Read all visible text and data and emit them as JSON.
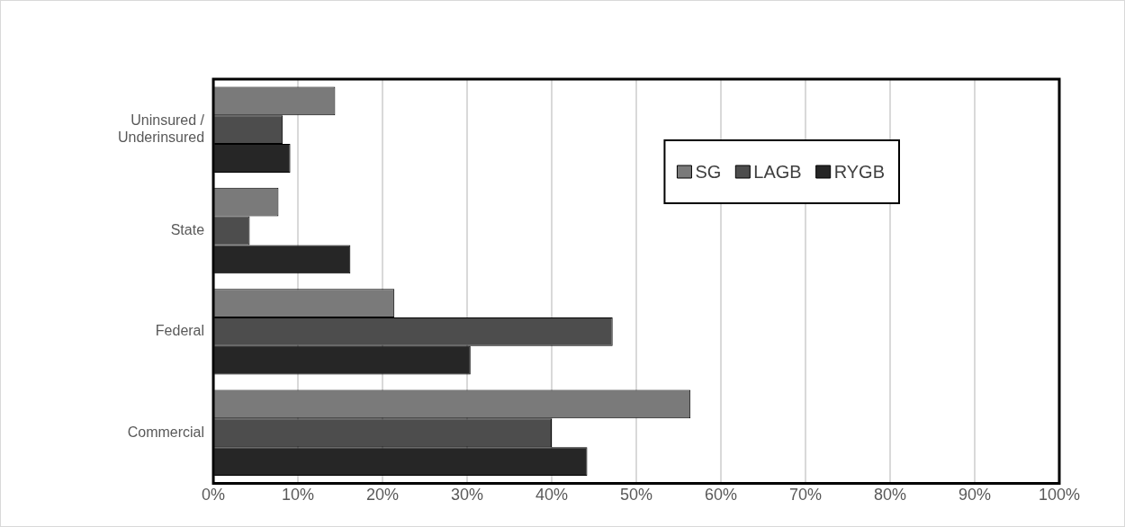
{
  "chart_data": {
    "type": "bar",
    "orientation": "horizontal",
    "categories": [
      "Uninsured / Underinsured",
      "State",
      "Federal",
      "Commercial"
    ],
    "series": [
      {
        "name": "SG",
        "color": "#7a7a7a",
        "values": [
          14.4,
          7.7,
          21.4,
          56.4
        ]
      },
      {
        "name": "LAGB",
        "color": "#4d4d4d",
        "values": [
          8.2,
          4.3,
          47.2,
          40.0
        ]
      },
      {
        "name": "RYGB",
        "color": "#262626",
        "values": [
          9.1,
          16.2,
          30.4,
          44.2
        ]
      }
    ],
    "xlim": [
      0,
      100
    ],
    "xticks": [
      {
        "value": 0,
        "label": "0%"
      },
      {
        "value": 10,
        "label": "10%"
      },
      {
        "value": 20,
        "label": "20%"
      },
      {
        "value": 30,
        "label": "30%"
      },
      {
        "value": 40,
        "label": "40%"
      },
      {
        "value": 50,
        "label": "50%"
      },
      {
        "value": 60,
        "label": "60%"
      },
      {
        "value": 70,
        "label": "70%"
      },
      {
        "value": 80,
        "label": "80%"
      },
      {
        "value": 90,
        "label": "90%"
      },
      {
        "value": 100,
        "label": "100%"
      }
    ],
    "grid": "x",
    "legend": "top right"
  }
}
